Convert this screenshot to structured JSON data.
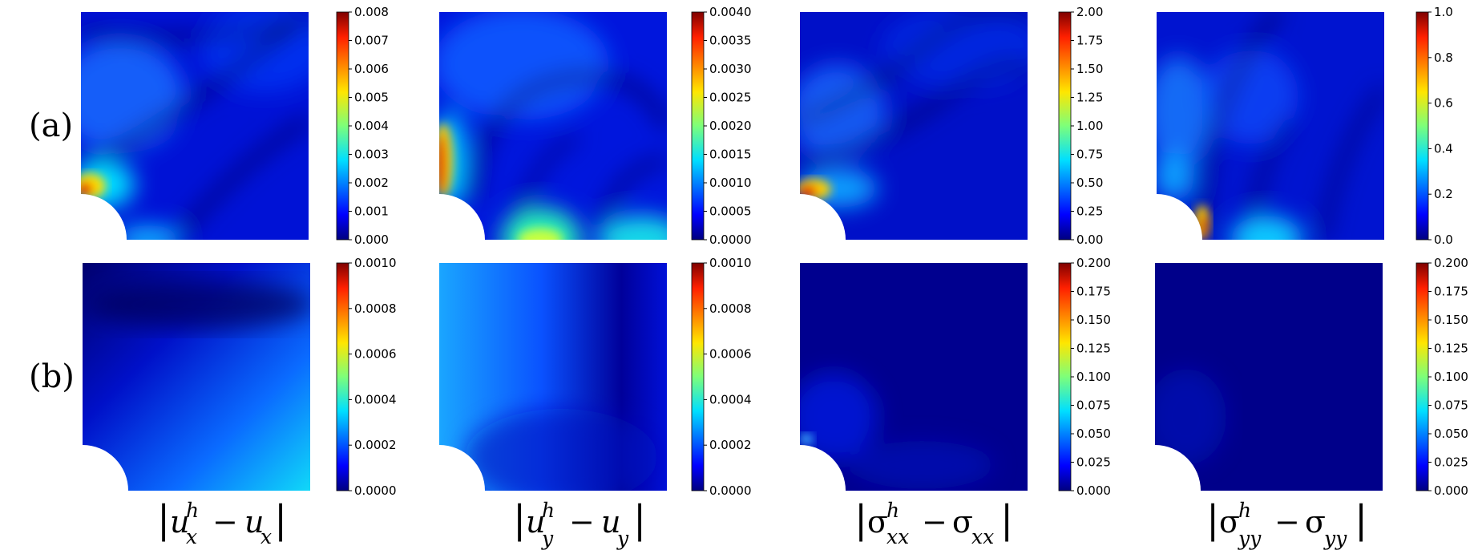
{
  "row_labels": [
    "(a)",
    "(b)"
  ],
  "column_labels": [
    "|u_x^h − u_x|",
    "|u_y^h − u_y|",
    "|σ_xx^h − σ_xx|",
    "|σ_yy^h − σ_yy|"
  ],
  "chart_data": [
    {
      "type": "heatmap",
      "row": "(a)",
      "column": "|u_x^h − u_x|",
      "colormap": "jet",
      "colorbar": {
        "min": 0,
        "max": 0.008,
        "ticks": [
          "0.000",
          "0.001",
          "0.002",
          "0.003",
          "0.004",
          "0.005",
          "0.006",
          "0.007",
          "0.008"
        ]
      }
    },
    {
      "type": "heatmap",
      "row": "(a)",
      "column": "|u_y^h − u_y|",
      "colormap": "jet",
      "colorbar": {
        "min": 0,
        "max": 0.004,
        "ticks": [
          "0.0000",
          "0.0005",
          "0.0010",
          "0.0015",
          "0.0020",
          "0.0025",
          "0.0030",
          "0.0035",
          "0.0040"
        ]
      }
    },
    {
      "type": "heatmap",
      "row": "(a)",
      "column": "|σ_xx^h − σ_xx|",
      "colormap": "jet",
      "colorbar": {
        "min": 0,
        "max": 2.0,
        "ticks": [
          "0.00",
          "0.25",
          "0.50",
          "0.75",
          "1.00",
          "1.25",
          "1.50",
          "1.75",
          "2.00"
        ]
      }
    },
    {
      "type": "heatmap",
      "row": "(a)",
      "column": "|σ_yy^h − σ_yy|",
      "colormap": "jet",
      "colorbar": {
        "min": 0,
        "max": 1.0,
        "ticks": [
          "0.0",
          "0.2",
          "0.4",
          "0.6",
          "0.8",
          "1.0"
        ]
      }
    },
    {
      "type": "heatmap",
      "row": "(b)",
      "column": "|u_x^h − u_x|",
      "colormap": "jet",
      "colorbar": {
        "min": 0,
        "max": 0.001,
        "ticks": [
          "0.0000",
          "0.0002",
          "0.0004",
          "0.0006",
          "0.0008",
          "0.0010"
        ]
      }
    },
    {
      "type": "heatmap",
      "row": "(b)",
      "column": "|u_y^h − u_y|",
      "colormap": "jet",
      "colorbar": {
        "min": 0,
        "max": 0.001,
        "ticks": [
          "0.0000",
          "0.0002",
          "0.0004",
          "0.0006",
          "0.0008",
          "0.0010"
        ]
      }
    },
    {
      "type": "heatmap",
      "row": "(b)",
      "column": "|σ_xx^h − σ_xx|",
      "colormap": "jet",
      "colorbar": {
        "min": 0,
        "max": 0.2,
        "ticks": [
          "0.000",
          "0.025",
          "0.050",
          "0.075",
          "0.100",
          "0.125",
          "0.150",
          "0.175",
          "0.200"
        ]
      }
    },
    {
      "type": "heatmap",
      "row": "(b)",
      "column": "|σ_yy^h − σ_yy|",
      "colormap": "jet",
      "colorbar": {
        "min": 0,
        "max": 0.2,
        "ticks": [
          "0.000",
          "0.025",
          "0.050",
          "0.075",
          "0.100",
          "0.125",
          "0.150",
          "0.175",
          "0.200"
        ]
      }
    }
  ]
}
